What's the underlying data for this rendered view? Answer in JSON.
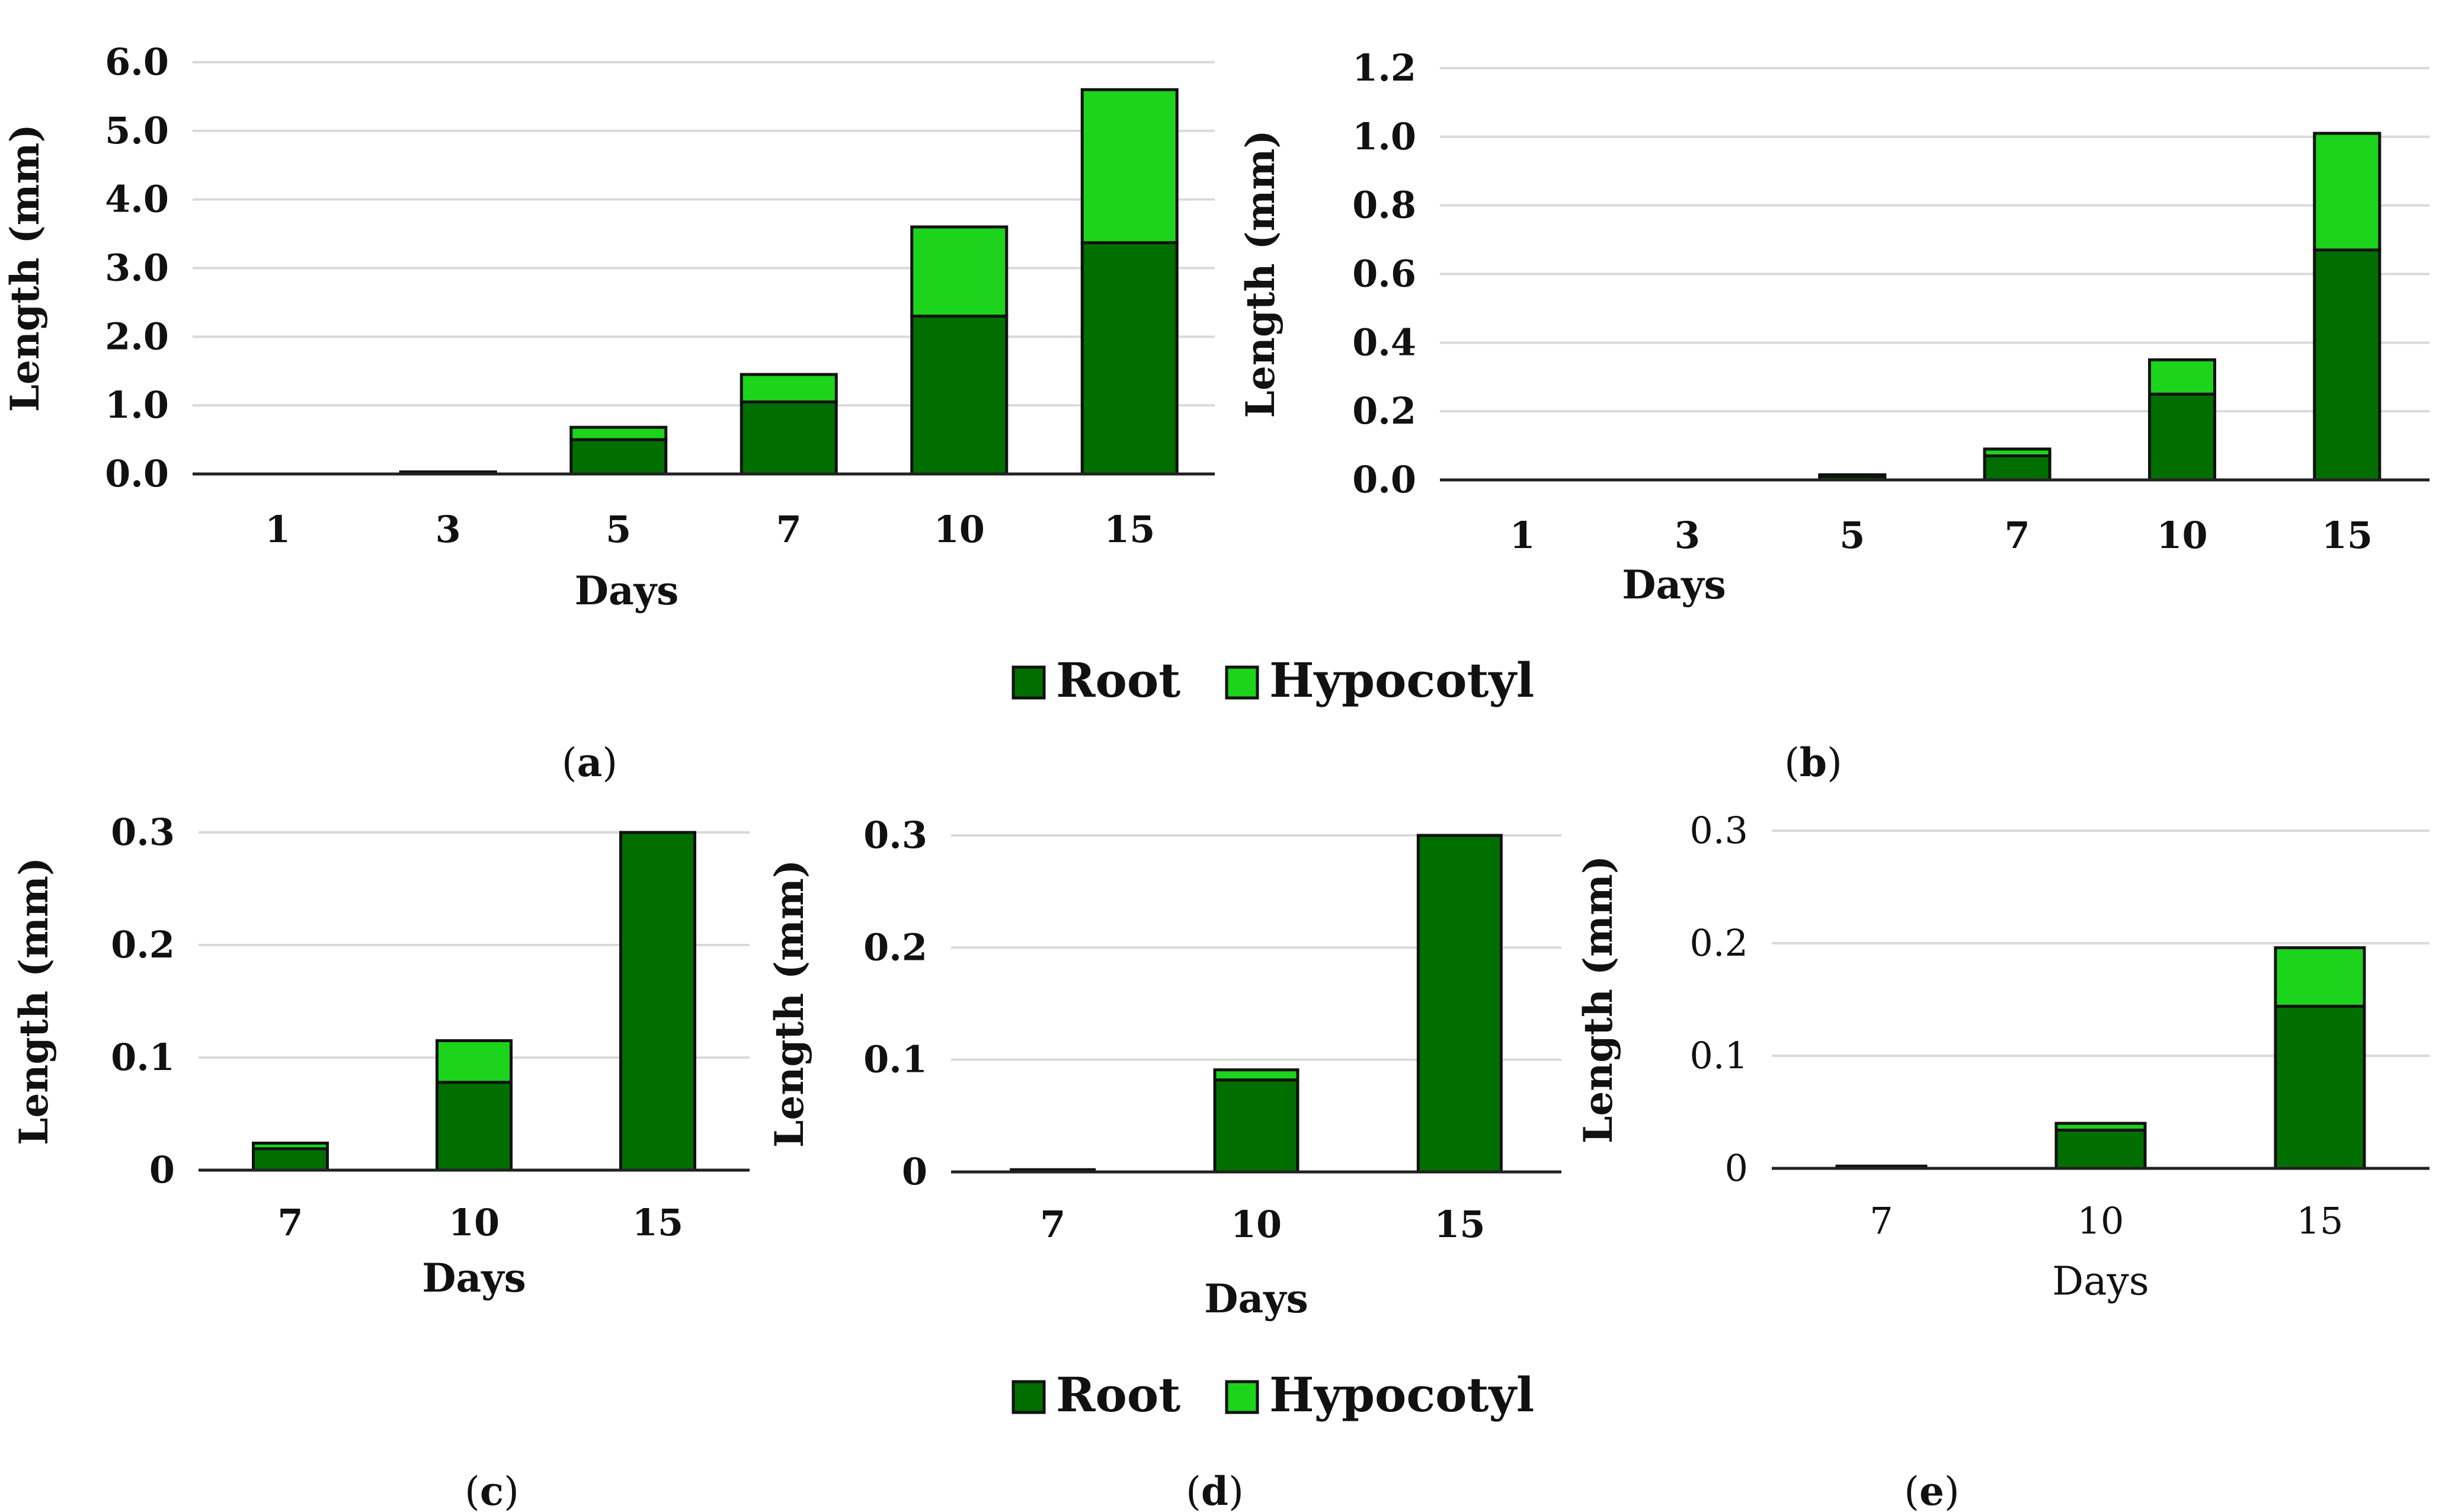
{
  "colors": {
    "root": "#006f00",
    "hypocotyl": "#1bd41b",
    "grid": "#d9d9d9",
    "axis": "#222222"
  },
  "legends": [
    {
      "items": [
        {
          "label": "Root",
          "color": "#006f00"
        },
        {
          "label": "Hypocotyl",
          "color": "#1bd41b"
        }
      ]
    },
    {
      "items": [
        {
          "label": "Root",
          "color": "#006f00"
        },
        {
          "label": "Hypocotyl",
          "color": "#1bd41b"
        }
      ]
    }
  ],
  "chart_data": [
    {
      "id": "a",
      "panel_label": "a",
      "type": "bar",
      "stacked": true,
      "xlabel": "Days",
      "ylabel": "Length (mm)",
      "categories": [
        "1",
        "3",
        "5",
        "7",
        "10",
        "15"
      ],
      "ylim": [
        0,
        6
      ],
      "yticks": [
        "0.0",
        "1.0",
        "2.0",
        "3.0",
        "4.0",
        "5.0",
        "6.0"
      ],
      "series": [
        {
          "name": "Root",
          "values": [
            0,
            0.02,
            0.5,
            1.05,
            2.3,
            3.37
          ]
        },
        {
          "name": "Hypocotyl",
          "values": [
            0,
            0.01,
            0.18,
            0.4,
            1.3,
            2.23
          ]
        }
      ]
    },
    {
      "id": "b",
      "panel_label": "b",
      "type": "bar",
      "stacked": true,
      "xlabel": "Days",
      "ylabel": "Length (mm)",
      "categories": [
        "1",
        "3",
        "5",
        "7",
        "10",
        "15"
      ],
      "ylim": [
        0,
        1.2
      ],
      "yticks": [
        "0.0",
        "0.2",
        "0.4",
        "0.6",
        "0.8",
        "1.0",
        "1.2"
      ],
      "series": [
        {
          "name": "Root",
          "values": [
            0,
            0,
            0.01,
            0.07,
            0.25,
            0.67
          ]
        },
        {
          "name": "Hypocotyl",
          "values": [
            0,
            0,
            0.005,
            0.02,
            0.1,
            0.34
          ]
        }
      ]
    },
    {
      "id": "c",
      "panel_label": "c",
      "type": "bar",
      "stacked": true,
      "xlabel": "Days",
      "ylabel": "Length (mm)",
      "categories": [
        "7",
        "10",
        "15"
      ],
      "ylim": [
        0,
        0.3
      ],
      "yticks": [
        "0",
        "0.1",
        "0.2",
        "0.3"
      ],
      "series": [
        {
          "name": "Root",
          "values": [
            0.019,
            0.078,
            0.3
          ]
        },
        {
          "name": "Hypocotyl",
          "values": [
            0.005,
            0.037,
            0
          ]
        }
      ]
    },
    {
      "id": "d",
      "panel_label": "d",
      "type": "bar",
      "stacked": true,
      "xlabel": "Days",
      "ylabel": "Length (mm)",
      "categories": [
        "7",
        "10",
        "15"
      ],
      "ylim": [
        0,
        0.3
      ],
      "yticks": [
        "0",
        "0.1",
        "0.2",
        "0.3"
      ],
      "series": [
        {
          "name": "Root",
          "values": [
            0.002,
            0.082,
            0.3
          ]
        },
        {
          "name": "Hypocotyl",
          "values": [
            0,
            0.009,
            0
          ]
        }
      ]
    },
    {
      "id": "e",
      "panel_label": "e",
      "type": "bar",
      "stacked": true,
      "xlabel": "Days",
      "ylabel": "Length (mm)",
      "categories": [
        "7",
        "10",
        "15"
      ],
      "ylim": [
        0,
        0.3
      ],
      "yticks": [
        "0",
        "0.1",
        "0.2",
        "0.3"
      ],
      "series": [
        {
          "name": "Root",
          "values": [
            0.002,
            0.034,
            0.144
          ]
        },
        {
          "name": "Hypocotyl",
          "values": [
            0,
            0.006,
            0.052
          ]
        }
      ]
    }
  ]
}
